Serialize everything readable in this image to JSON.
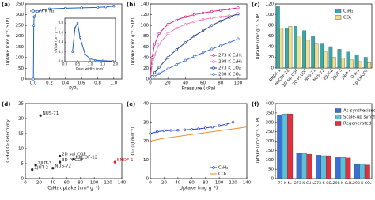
{
  "chart_data": [
    {
      "type": "line",
      "label": "(a)",
      "xlabel": "P/P₀",
      "ylabel": "Uptake (cm³ g⁻¹, STP)",
      "xlim": [
        -0.1,
        1.1
      ],
      "xticks": [
        {
          "value": 0,
          "label": "0.0"
        },
        0.2,
        0.4,
        0.6,
        0.8,
        {
          "value": 1,
          "label": "1.0"
        }
      ],
      "ylim": [
        0,
        350
      ],
      "yticks": [
        0,
        50,
        100,
        150,
        200,
        250,
        300,
        350
      ],
      "legend": "top-left",
      "series": [
        {
          "name": "77 K N₂",
          "color": "#1f5fbf",
          "markers": true,
          "x": [
            0,
            0.005,
            0.01,
            0.05,
            0.1,
            0.2,
            0.4,
            0.6,
            0.8,
            0.9,
            1.0
          ],
          "values": [
            0,
            250,
            290,
            315,
            322,
            327,
            330,
            332,
            334,
            336,
            340
          ]
        }
      ],
      "inset": {
        "xlabel": "Pore width (nm)",
        "ylabel": "dV/dw (cm³ g⁻¹)",
        "xlim": [
          0,
          2
        ],
        "xticks": [
          {
            "value": 0,
            "label": "0.0"
          },
          0.5,
          {
            "value": 1,
            "label": "1.0"
          },
          1.5,
          {
            "value": 2,
            "label": "2.0"
          }
        ],
        "ylim": [
          0,
          0.9
        ],
        "yticks": [
          {
            "value": 0,
            "label": "0.0"
          },
          0.2,
          0.4,
          0.6,
          0.8
        ],
        "series": [
          {
            "color": "#1f5fbf",
            "markers": true,
            "x": [
              0.3,
              0.4,
              0.5,
              0.6,
              0.8,
              1.0,
              1.2,
              1.5,
              1.9
            ],
            "values": [
              0.2,
              0.7,
              0.8,
              0.5,
              0.15,
              0.06,
              0.03,
              0.02,
              0.01
            ]
          }
        ]
      }
    },
    {
      "type": "line",
      "label": "(b)",
      "xlabel": "Pressure (kPa)",
      "ylabel": "Uptake (cm³ g⁻¹, STP)",
      "xlim": [
        0,
        110
      ],
      "xticks": [
        0,
        20,
        40,
        60,
        80,
        100
      ],
      "ylim": [
        0,
        140
      ],
      "yticks": [
        0,
        20,
        40,
        60,
        80,
        100,
        120,
        140
      ],
      "legend": "bottom-right",
      "series": [
        {
          "name": "273 K C₂H₂",
          "color": "#d6238a",
          "markers": true,
          "x": [
            0,
            2,
            5,
            10,
            20,
            30,
            40,
            50,
            60,
            70,
            80,
            90,
            100
          ],
          "values": [
            0,
            40,
            65,
            85,
            102,
            110,
            116,
            120,
            123,
            126,
            128,
            130,
            133
          ]
        },
        {
          "name": "298 K C₂H₂",
          "color": "#f07cc0",
          "markers": true,
          "x": [
            0,
            2,
            5,
            10,
            20,
            30,
            40,
            50,
            60,
            70,
            80,
            90,
            100
          ],
          "values": [
            0,
            25,
            45,
            65,
            85,
            95,
            102,
            107,
            111,
            114,
            116,
            118,
            120
          ]
        },
        {
          "name": "273 K CO₂",
          "color": "#1f3f8f",
          "markers": true,
          "x": [
            0,
            2,
            5,
            10,
            20,
            30,
            40,
            50,
            60,
            70,
            80,
            90,
            100
          ],
          "values": [
            0,
            5,
            12,
            22,
            40,
            55,
            68,
            80,
            90,
            100,
            108,
            115,
            122
          ]
        },
        {
          "name": "298 K CO₂",
          "color": "#3a6fd0",
          "markers": true,
          "x": [
            0,
            2,
            5,
            10,
            20,
            30,
            40,
            50,
            60,
            70,
            80,
            90,
            100
          ],
          "values": [
            0,
            2,
            5,
            10,
            19,
            27,
            35,
            42,
            49,
            56,
            62,
            68,
            75
          ]
        }
      ]
    },
    {
      "type": "bar",
      "label": "(c)",
      "ylabel": "Uptake (cm³ g⁻¹, STP)",
      "categories": [
        "BNOF-1",
        "NKCOF-12",
        "2D sql COF",
        "3D PI COF",
        "NUS-71",
        "NUS-72",
        "ZJUT-2",
        "ZJUT-3",
        "JNM-1",
        "Q-a-1",
        "Tp-ExtCOF"
      ],
      "ylim": [
        0,
        120
      ],
      "yticks": [
        0,
        20,
        40,
        60,
        80,
        100,
        120
      ],
      "legend": "top-right",
      "series": [
        {
          "name": "C₂H₂",
          "color": "#38a9a9",
          "values": [
            115,
            75,
            78,
            70,
            60,
            45,
            40,
            35,
            30,
            25,
            20
          ]
        },
        {
          "name": "CO₂",
          "color": "#f2e08f",
          "values": [
            75,
            78,
            60,
            52,
            45,
            30,
            20,
            18,
            15,
            12,
            10
          ]
        }
      ]
    },
    {
      "type": "scatter",
      "label": "(d)",
      "xlabel": "C₂H₂ uptake (cm³ g⁻¹)",
      "ylabel": "C₂H₂/CO₂ selectivity",
      "xlim": [
        0,
        140
      ],
      "xticks": [
        0,
        20,
        40,
        60,
        80,
        100,
        120,
        140
      ],
      "ylim": [
        0,
        25
      ],
      "yticks": [
        0,
        5,
        10,
        15,
        20,
        25
      ],
      "labels": [
        "NUS-71",
        "2D sql COF",
        "NKCOF-12",
        "3D PI COF",
        "ZJUT-3",
        "ZJUT-2",
        "NUS-72",
        "BNOF-1"
      ],
      "x": [
        22,
        50,
        70,
        50,
        15,
        10,
        40,
        130
      ],
      "values": [
        21,
        7.5,
        6.5,
        5.5,
        4.5,
        3,
        3.5,
        5.5
      ],
      "colors": [
        "#222222",
        "#222222",
        "#222222",
        "#222222",
        "#222222",
        "#222222",
        "#222222",
        "#e02020"
      ]
    },
    {
      "type": "line",
      "label": "(e)",
      "xlabel": "Uptake (mg g⁻¹)",
      "ylabel": "Qₛₜ (kJ mol⁻¹)",
      "xlim": [
        0,
        140
      ],
      "xticks": [
        0,
        20,
        40,
        60,
        80,
        100,
        120,
        140
      ],
      "ylim": [
        0,
        40
      ],
      "yticks": [
        0,
        10,
        20,
        30,
        40
      ],
      "legend": "bottom-right",
      "series": [
        {
          "name": "C₂H₂",
          "color": "#2040d0",
          "markers": true,
          "x": [
            0,
            10,
            20,
            30,
            40,
            50,
            60,
            70,
            80,
            90,
            100,
            110,
            120
          ],
          "values": [
            24,
            25,
            25.5,
            25.7,
            25.8,
            26,
            26.2,
            26.5,
            27,
            27.5,
            28.2,
            29,
            30
          ]
        },
        {
          "name": "CO₂",
          "color": "#f08a24",
          "markers": false,
          "x": [
            0,
            10,
            20,
            30,
            40,
            50,
            60,
            70,
            80,
            90,
            100,
            110,
            120,
            130,
            140
          ],
          "values": [
            20,
            20.8,
            21.5,
            22,
            22.5,
            23,
            23.5,
            24,
            24.5,
            25,
            25.5,
            26,
            26.5,
            27,
            27.5
          ]
        }
      ]
    },
    {
      "type": "bar",
      "label": "(f)",
      "ylabel": "Uptake (cm³ g⁻¹, STP)",
      "categories": [
        "77 K N₂",
        "273 K C₂H₂",
        "273 K CO₂",
        "298 K C₂H₂",
        "298 K CO₂"
      ],
      "ylim": [
        0,
        400
      ],
      "yticks": [
        0,
        50,
        100,
        150,
        200,
        250,
        300,
        350,
        400
      ],
      "legend": "top-right",
      "series": [
        {
          "name": "As-synthesized",
          "color": "#3b6fd4",
          "values": [
            340,
            135,
            125,
            115,
            75
          ]
        },
        {
          "name": "Scale-up synthesis",
          "color": "#5bc0d8",
          "values": [
            345,
            133,
            122,
            113,
            78
          ]
        },
        {
          "name": "Regenerated",
          "color": "#e0303c",
          "values": [
            345,
            130,
            122,
            110,
            73
          ]
        }
      ]
    }
  ]
}
